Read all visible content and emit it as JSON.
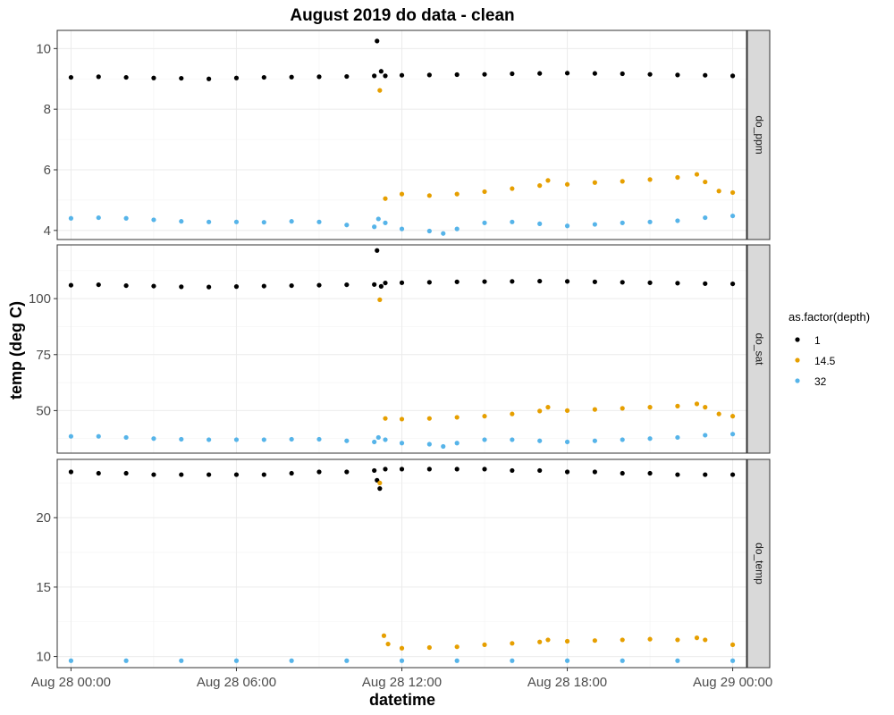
{
  "chart_data": {
    "type": "scatter",
    "title": "August 2019 do data - clean",
    "xlabel": "datetime",
    "ylabel": "temp (deg C)",
    "grid": true,
    "legend": {
      "title": "as.factor(depth)",
      "placement": "right",
      "entries": [
        {
          "label": "1",
          "color": "#000000"
        },
        {
          "label": "14.5",
          "color": "#E69F00"
        },
        {
          "label": "32",
          "color": "#56B4E9"
        }
      ]
    },
    "x_axis": {
      "unit": "hours since Aug 28 00:00",
      "range": [
        -0.5,
        24.5
      ],
      "ticks": [
        0,
        6,
        12,
        18,
        24
      ],
      "tick_labels": [
        "Aug 28 00:00",
        "Aug 28 06:00",
        "Aug 28 12:00",
        "Aug 28 18:00",
        "Aug 29 00:00"
      ]
    },
    "facets": [
      {
        "label": "do_ppm",
        "ylim": [
          3.7,
          10.6
        ],
        "y_ticks": [
          4,
          6,
          8,
          10
        ],
        "series": [
          {
            "name": "1",
            "color": "#000000",
            "points": [
              [
                0,
                9.05
              ],
              [
                1,
                9.07
              ],
              [
                2,
                9.05
              ],
              [
                3,
                9.03
              ],
              [
                4,
                9.02
              ],
              [
                5,
                9.0
              ],
              [
                6,
                9.03
              ],
              [
                7,
                9.05
              ],
              [
                8,
                9.06
              ],
              [
                9,
                9.07
              ],
              [
                10,
                9.08
              ],
              [
                11,
                9.1
              ],
              [
                11.1,
                10.25
              ],
              [
                11.25,
                9.25
              ],
              [
                11.4,
                9.1
              ],
              [
                12,
                9.12
              ],
              [
                13,
                9.13
              ],
              [
                14,
                9.14
              ],
              [
                15,
                9.15
              ],
              [
                16,
                9.17
              ],
              [
                17,
                9.18
              ],
              [
                18,
                9.19
              ],
              [
                19,
                9.18
              ],
              [
                20,
                9.17
              ],
              [
                21,
                9.15
              ],
              [
                22,
                9.13
              ],
              [
                23,
                9.12
              ],
              [
                24,
                9.1
              ]
            ]
          },
          {
            "name": "14.5",
            "color": "#E69F00",
            "points": [
              [
                11.2,
                8.62
              ],
              [
                11.4,
                5.05
              ],
              [
                12,
                5.2
              ],
              [
                13,
                5.15
              ],
              [
                14,
                5.2
              ],
              [
                15,
                5.28
              ],
              [
                16,
                5.38
              ],
              [
                17,
                5.48
              ],
              [
                17.3,
                5.65
              ],
              [
                18,
                5.52
              ],
              [
                19,
                5.58
              ],
              [
                20,
                5.62
              ],
              [
                21,
                5.68
              ],
              [
                22,
                5.75
              ],
              [
                22.7,
                5.85
              ],
              [
                23,
                5.6
              ],
              [
                23.5,
                5.3
              ],
              [
                24,
                5.25
              ]
            ]
          },
          {
            "name": "32",
            "color": "#56B4E9",
            "points": [
              [
                0,
                4.4
              ],
              [
                1,
                4.42
              ],
              [
                2,
                4.4
              ],
              [
                3,
                4.35
              ],
              [
                4,
                4.3
              ],
              [
                5,
                4.28
              ],
              [
                6,
                4.28
              ],
              [
                7,
                4.27
              ],
              [
                8,
                4.3
              ],
              [
                9,
                4.28
              ],
              [
                10,
                4.18
              ],
              [
                11,
                4.12
              ],
              [
                11.15,
                4.38
              ],
              [
                11.4,
                4.25
              ],
              [
                12,
                4.05
              ],
              [
                13,
                3.98
              ],
              [
                13.5,
                3.9
              ],
              [
                14,
                4.05
              ],
              [
                15,
                4.25
              ],
              [
                16,
                4.28
              ],
              [
                17,
                4.22
              ],
              [
                18,
                4.15
              ],
              [
                19,
                4.2
              ],
              [
                20,
                4.25
              ],
              [
                21,
                4.28
              ],
              [
                22,
                4.32
              ],
              [
                23,
                4.42
              ],
              [
                24,
                4.48
              ]
            ]
          }
        ]
      },
      {
        "label": "do_sat",
        "ylim": [
          31,
          124
        ],
        "y_ticks": [
          50,
          75,
          100
        ],
        "series": [
          {
            "name": "1",
            "color": "#000000",
            "points": [
              [
                0,
                106
              ],
              [
                1,
                106.2
              ],
              [
                2,
                105.8
              ],
              [
                3,
                105.6
              ],
              [
                4,
                105.3
              ],
              [
                5,
                105.2
              ],
              [
                6,
                105.4
              ],
              [
                7,
                105.6
              ],
              [
                8,
                105.8
              ],
              [
                9,
                106
              ],
              [
                10,
                106.2
              ],
              [
                11,
                106.3
              ],
              [
                11.1,
                121.5
              ],
              [
                11.25,
                105.5
              ],
              [
                11.4,
                107
              ],
              [
                12,
                107.1
              ],
              [
                13,
                107.3
              ],
              [
                14,
                107.5
              ],
              [
                15,
                107.6
              ],
              [
                16,
                107.7
              ],
              [
                17,
                107.8
              ],
              [
                18,
                107.7
              ],
              [
                19,
                107.5
              ],
              [
                20,
                107.3
              ],
              [
                21,
                107.1
              ],
              [
                22,
                106.9
              ],
              [
                23,
                106.7
              ],
              [
                24,
                106.6
              ]
            ]
          },
          {
            "name": "14.5",
            "color": "#E69F00",
            "points": [
              [
                11.2,
                99.5
              ],
              [
                11.4,
                46.5
              ],
              [
                12,
                46.2
              ],
              [
                13,
                46.5
              ],
              [
                14,
                47
              ],
              [
                15,
                47.5
              ],
              [
                16,
                48.5
              ],
              [
                17,
                49.8
              ],
              [
                17.3,
                51.5
              ],
              [
                18,
                50
              ],
              [
                19,
                50.5
              ],
              [
                20,
                51
              ],
              [
                21,
                51.5
              ],
              [
                22,
                52
              ],
              [
                22.7,
                53
              ],
              [
                23,
                51.5
              ],
              [
                23.5,
                48.5
              ],
              [
                24,
                47.5
              ]
            ]
          },
          {
            "name": "32",
            "color": "#56B4E9",
            "points": [
              [
                0,
                38.5
              ],
              [
                1,
                38.5
              ],
              [
                2,
                38
              ],
              [
                3,
                37.5
              ],
              [
                4,
                37.2
              ],
              [
                5,
                37
              ],
              [
                6,
                37
              ],
              [
                7,
                37
              ],
              [
                8,
                37.2
              ],
              [
                9,
                37.2
              ],
              [
                10,
                36.5
              ],
              [
                11,
                36
              ],
              [
                11.15,
                38
              ],
              [
                11.4,
                37
              ],
              [
                12,
                35.5
              ],
              [
                13,
                35
              ],
              [
                13.5,
                34
              ],
              [
                14,
                35.5
              ],
              [
                15,
                37
              ],
              [
                16,
                37
              ],
              [
                17,
                36.5
              ],
              [
                18,
                36
              ],
              [
                19,
                36.5
              ],
              [
                20,
                37
              ],
              [
                21,
                37.5
              ],
              [
                22,
                38
              ],
              [
                23,
                39
              ],
              [
                24,
                39.5
              ]
            ]
          }
        ]
      },
      {
        "label": "do_temp",
        "ylim": [
          9.2,
          24.2
        ],
        "y_ticks": [
          10,
          15,
          20
        ],
        "series": [
          {
            "name": "1",
            "color": "#000000",
            "points": [
              [
                0,
                23.3
              ],
              [
                1,
                23.2
              ],
              [
                2,
                23.2
              ],
              [
                3,
                23.1
              ],
              [
                4,
                23.1
              ],
              [
                5,
                23.1
              ],
              [
                6,
                23.1
              ],
              [
                7,
                23.1
              ],
              [
                8,
                23.2
              ],
              [
                9,
                23.3
              ],
              [
                10,
                23.3
              ],
              [
                11,
                23.4
              ],
              [
                11.1,
                22.7
              ],
              [
                11.2,
                22.1
              ],
              [
                11.4,
                23.5
              ],
              [
                12,
                23.5
              ],
              [
                13,
                23.5
              ],
              [
                14,
                23.5
              ],
              [
                15,
                23.5
              ],
              [
                16,
                23.4
              ],
              [
                17,
                23.4
              ],
              [
                18,
                23.3
              ],
              [
                19,
                23.3
              ],
              [
                20,
                23.2
              ],
              [
                21,
                23.2
              ],
              [
                22,
                23.1
              ],
              [
                23,
                23.1
              ],
              [
                24,
                23.1
              ]
            ]
          },
          {
            "name": "14.5",
            "color": "#E69F00",
            "points": [
              [
                11.2,
                22.5
              ],
              [
                11.35,
                11.5
              ],
              [
                11.5,
                10.9
              ],
              [
                12,
                10.6
              ],
              [
                13,
                10.65
              ],
              [
                14,
                10.7
              ],
              [
                15,
                10.85
              ],
              [
                16,
                10.95
              ],
              [
                17,
                11.05
              ],
              [
                17.3,
                11.2
              ],
              [
                18,
                11.1
              ],
              [
                19,
                11.15
              ],
              [
                20,
                11.2
              ],
              [
                21,
                11.25
              ],
              [
                22,
                11.2
              ],
              [
                22.7,
                11.35
              ],
              [
                23,
                11.2
              ],
              [
                24,
                10.85
              ]
            ]
          },
          {
            "name": "32",
            "color": "#56B4E9",
            "points": [
              [
                0,
                9.7
              ],
              [
                2,
                9.7
              ],
              [
                4,
                9.7
              ],
              [
                6,
                9.7
              ],
              [
                8,
                9.7
              ],
              [
                10,
                9.7
              ],
              [
                12,
                9.7
              ],
              [
                14,
                9.7
              ],
              [
                16,
                9.7
              ],
              [
                18,
                9.7
              ],
              [
                20,
                9.7
              ],
              [
                22,
                9.7
              ],
              [
                24,
                9.7
              ]
            ]
          }
        ]
      }
    ]
  }
}
